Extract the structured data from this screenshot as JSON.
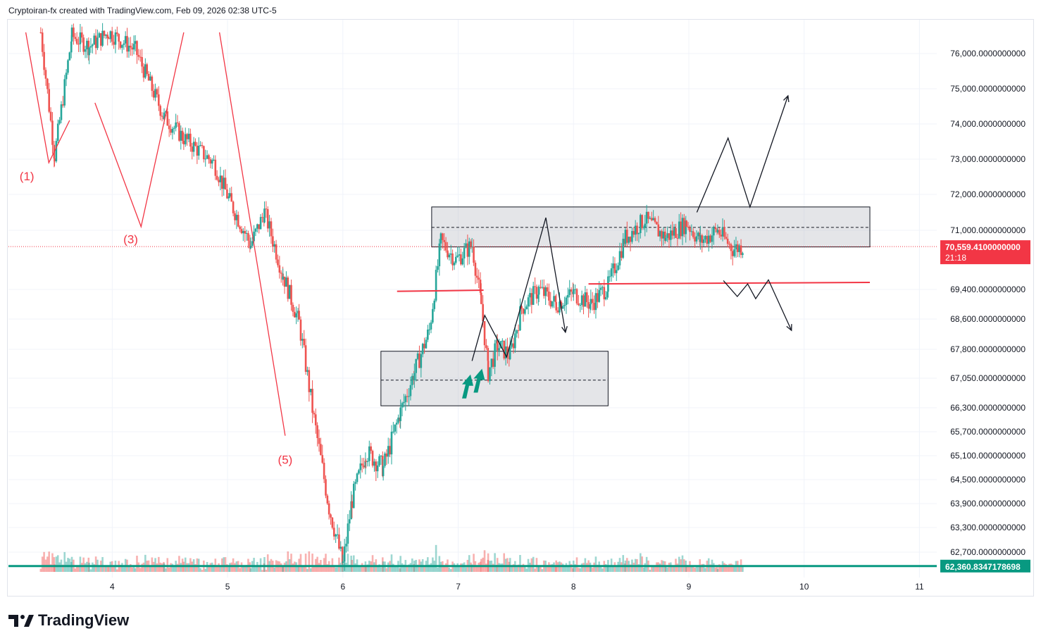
{
  "header": {
    "attribution": "Cryptoiran-fx created with TradingView.com, Feb 09, 2026 02:38 UTC-5"
  },
  "brand": {
    "name": "TradingView",
    "logo_icon": "tradingview-logo-icon"
  },
  "chart_data": {
    "type": "candlestick",
    "y_axis": {
      "tick_labels": [
        "76,000.0000000000",
        "75,000.0000000000",
        "74,000.0000000000",
        "73,000.0000000000",
        "72,000.0000000000",
        "71,000.0000000000",
        "69,400.0000000000",
        "68,600.0000000000",
        "67,800.0000000000",
        "67,050.0000000000",
        "66,300.0000000000",
        "65,700.0000000000",
        "65,100.0000000000",
        "64,500.0000000000",
        "63,900.0000000000",
        "63,300.0000000000",
        "62,700.0000000000"
      ],
      "tick_values": [
        76000,
        75000,
        74000,
        73000,
        72000,
        71000,
        69400,
        68600,
        67800,
        67050,
        66300,
        65700,
        65100,
        64500,
        63900,
        63300,
        62700
      ]
    },
    "x_axis": {
      "tick_labels": [
        "4",
        "5",
        "6",
        "7",
        "8",
        "9",
        "10",
        "11"
      ],
      "tick_values": [
        4,
        5,
        6,
        7,
        8,
        9,
        10,
        11
      ],
      "range": [
        3.1,
        11.15
      ]
    },
    "price_labels": {
      "last_price": "70,559.4100000000",
      "countdown": "21:18",
      "horizontal_line": "62,360.8347178698"
    },
    "last_price_value": 70559.41,
    "horizontal_line_value": 62360.83,
    "colors": {
      "up": "#26a69a",
      "down": "#ef5350",
      "accent_line": "#089981",
      "price_tag": "#f23645"
    },
    "wave_labels": [
      {
        "text": "(1)",
        "x": 3.26,
        "y": 72400
      },
      {
        "text": "(3)",
        "x": 4.16,
        "y": 70650
      },
      {
        "text": "(5)",
        "x": 5.5,
        "y": 64900
      }
    ],
    "zones": [
      {
        "name": "supply-zone",
        "x0": 6.77,
        "x1": 10.57,
        "top": 71650,
        "bottom": 70550,
        "mid": 71080
      },
      {
        "name": "demand-zone",
        "x0": 6.33,
        "x1": 8.3,
        "top": 67750,
        "bottom": 66350,
        "mid": 67000
      }
    ],
    "key_levels": [
      {
        "name": "resistance-line-1",
        "x0": 6.47,
        "x1": 7.22,
        "y0": 69350,
        "y1": 69380
      },
      {
        "name": "resistance-line-2",
        "x0": 8.13,
        "x1": 10.57,
        "y0": 69550,
        "y1": 69590
      }
    ],
    "wave_paths": [
      [
        [
          3.25,
          76600
        ],
        [
          3.45,
          72900
        ],
        [
          3.63,
          74100
        ]
      ],
      [
        [
          3.85,
          74600
        ],
        [
          4.25,
          71100
        ],
        [
          4.62,
          76600
        ]
      ],
      [
        [
          4.93,
          76600
        ],
        [
          5.5,
          65600
        ]
      ],
      [
        [
          7.12,
          67500
        ],
        [
          7.23,
          68700
        ],
        [
          7.42,
          67600
        ],
        [
          7.76,
          71350
        ],
        [
          7.93,
          68250
        ]
      ],
      [
        [
          9.07,
          71500
        ],
        [
          9.34,
          73600
        ],
        [
          9.53,
          71650
        ],
        [
          9.86,
          74800
        ]
      ],
      [
        [
          9.3,
          69640
        ],
        [
          9.42,
          69210
        ],
        [
          9.51,
          69550
        ],
        [
          9.58,
          69150
        ],
        [
          9.69,
          69660
        ],
        [
          9.89,
          68300
        ]
      ]
    ],
    "candles_generated_from": {
      "anchors": [
        [
          3.38,
          76600
        ],
        [
          3.5,
          73100
        ],
        [
          3.65,
          76500
        ],
        [
          3.8,
          76200
        ],
        [
          3.97,
          76600
        ],
        [
          4.2,
          76100
        ],
        [
          4.45,
          74200
        ],
        [
          4.62,
          73600
        ],
        [
          4.88,
          72900
        ],
        [
          5.02,
          71800
        ],
        [
          5.2,
          70600
        ],
        [
          5.32,
          71500
        ],
        [
          5.48,
          69800
        ],
        [
          5.62,
          68500
        ],
        [
          5.75,
          66000
        ],
        [
          5.88,
          63800
        ],
        [
          6.0,
          62400
        ],
        [
          6.08,
          64000
        ],
        [
          6.2,
          65200
        ],
        [
          6.35,
          64800
        ],
        [
          6.5,
          66200
        ],
        [
          6.62,
          67200
        ],
        [
          6.75,
          68300
        ],
        [
          6.85,
          70700
        ],
        [
          6.98,
          70200
        ],
        [
          7.12,
          70600
        ],
        [
          7.2,
          69000
        ],
        [
          7.26,
          67200
        ],
        [
          7.34,
          67900
        ],
        [
          7.45,
          67650
        ],
        [
          7.55,
          68900
        ],
        [
          7.7,
          69400
        ],
        [
          7.85,
          69000
        ],
        [
          8.0,
          69300
        ],
        [
          8.15,
          69000
        ],
        [
          8.3,
          69500
        ],
        [
          8.45,
          70800
        ],
        [
          8.62,
          71300
        ],
        [
          8.8,
          70800
        ],
        [
          8.98,
          71200
        ],
        [
          9.1,
          70700
        ],
        [
          9.25,
          71000
        ],
        [
          9.38,
          70500
        ],
        [
          9.47,
          70560
        ]
      ],
      "seed": 7
    },
    "annotations": {
      "up_arrows": [
        [
          7.07,
          67000
        ],
        [
          7.17,
          67150
        ]
      ]
    }
  }
}
